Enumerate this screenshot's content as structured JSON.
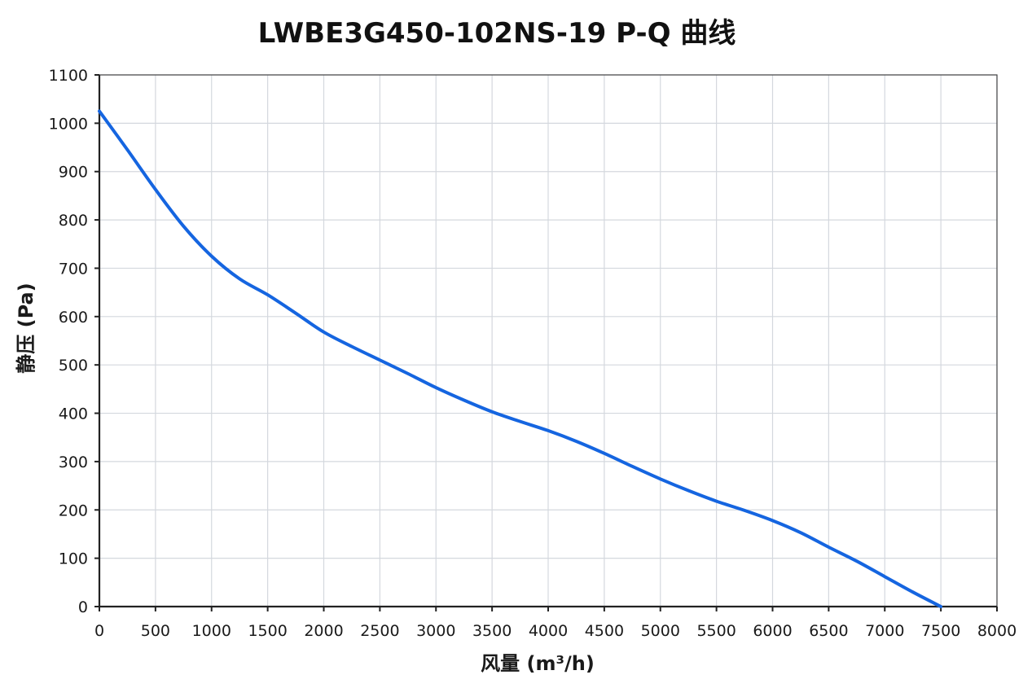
{
  "chart_data": {
    "type": "line",
    "title": "LWBE3G450-102NS-19 P-Q 曲线",
    "xlabel": "风量 (m³/h)",
    "ylabel": "静压 (Pa)",
    "xlim": [
      0,
      8000
    ],
    "ylim": [
      0,
      1100
    ],
    "xticks": [
      0,
      500,
      1000,
      1500,
      2000,
      2500,
      3000,
      3500,
      4000,
      4500,
      5000,
      5500,
      6000,
      6500,
      7000,
      7500,
      8000
    ],
    "yticks": [
      0,
      100,
      200,
      300,
      400,
      500,
      600,
      700,
      800,
      900,
      1000,
      1100
    ],
    "grid": true,
    "legend": "none",
    "series": [
      {
        "color": "#1565e0",
        "points": [
          [
            0,
            1025
          ],
          [
            250,
            945
          ],
          [
            500,
            863
          ],
          [
            750,
            787
          ],
          [
            1000,
            725
          ],
          [
            1250,
            678
          ],
          [
            1500,
            645
          ],
          [
            1750,
            607
          ],
          [
            2000,
            568
          ],
          [
            2250,
            538
          ],
          [
            2500,
            510
          ],
          [
            2750,
            482
          ],
          [
            3000,
            453
          ],
          [
            3250,
            427
          ],
          [
            3500,
            403
          ],
          [
            3750,
            383
          ],
          [
            4000,
            364
          ],
          [
            4250,
            342
          ],
          [
            4500,
            317
          ],
          [
            4750,
            290
          ],
          [
            5000,
            264
          ],
          [
            5250,
            240
          ],
          [
            5500,
            218
          ],
          [
            5750,
            199
          ],
          [
            6000,
            178
          ],
          [
            6250,
            153
          ],
          [
            6500,
            123
          ],
          [
            6750,
            94
          ],
          [
            7000,
            62
          ],
          [
            7250,
            30
          ],
          [
            7500,
            0
          ]
        ]
      }
    ]
  }
}
